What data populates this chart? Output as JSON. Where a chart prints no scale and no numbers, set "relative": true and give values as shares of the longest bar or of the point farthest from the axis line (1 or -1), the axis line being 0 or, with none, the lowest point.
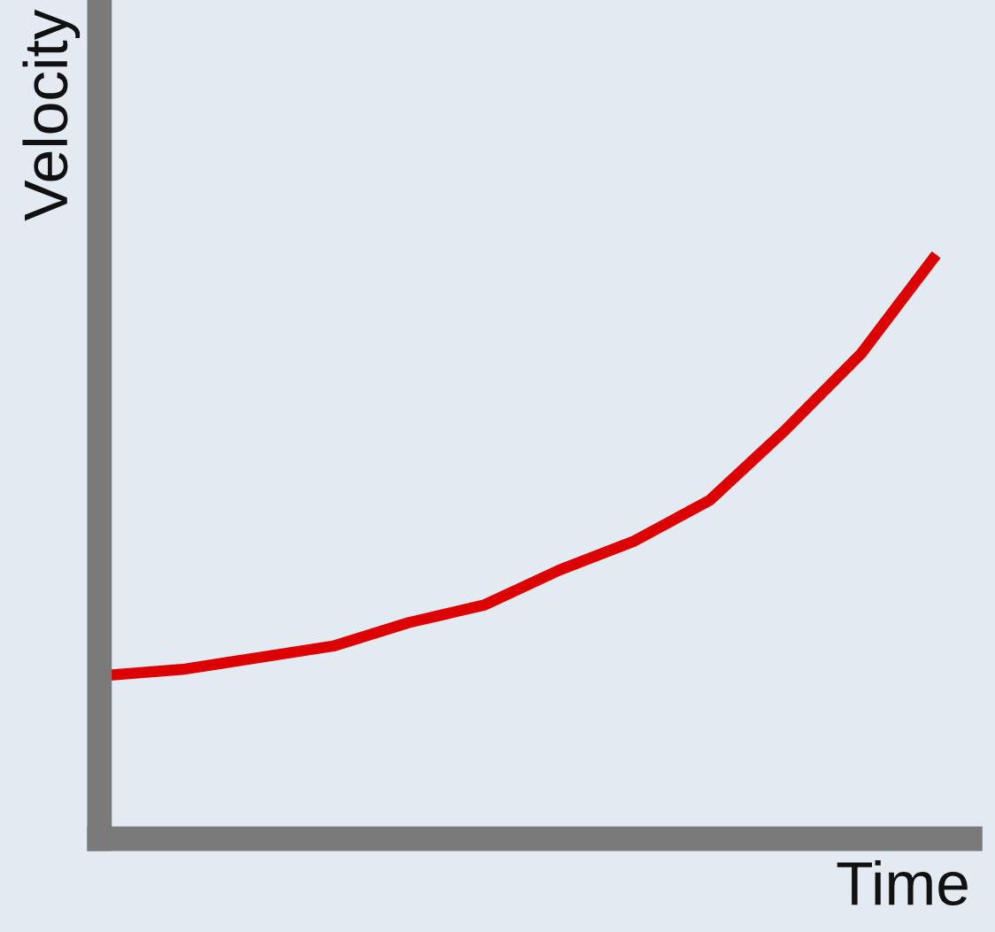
{
  "chart_data": {
    "type": "line",
    "xlabel": "Time",
    "ylabel": "Velocity",
    "relative": true,
    "categories": [
      null,
      null,
      null,
      null,
      null,
      null,
      null,
      null,
      null,
      null,
      null,
      null
    ],
    "series": [
      {
        "color": "#dd0000",
        "values": [
          0.28,
          0.29,
          0.31,
          0.33,
          0.37,
          0.4,
          0.46,
          0.51,
          0.58,
          0.7,
          0.83,
          1
        ]
      }
    ],
    "grid": false,
    "marker": "none",
    "line_style": "solid"
  }
}
